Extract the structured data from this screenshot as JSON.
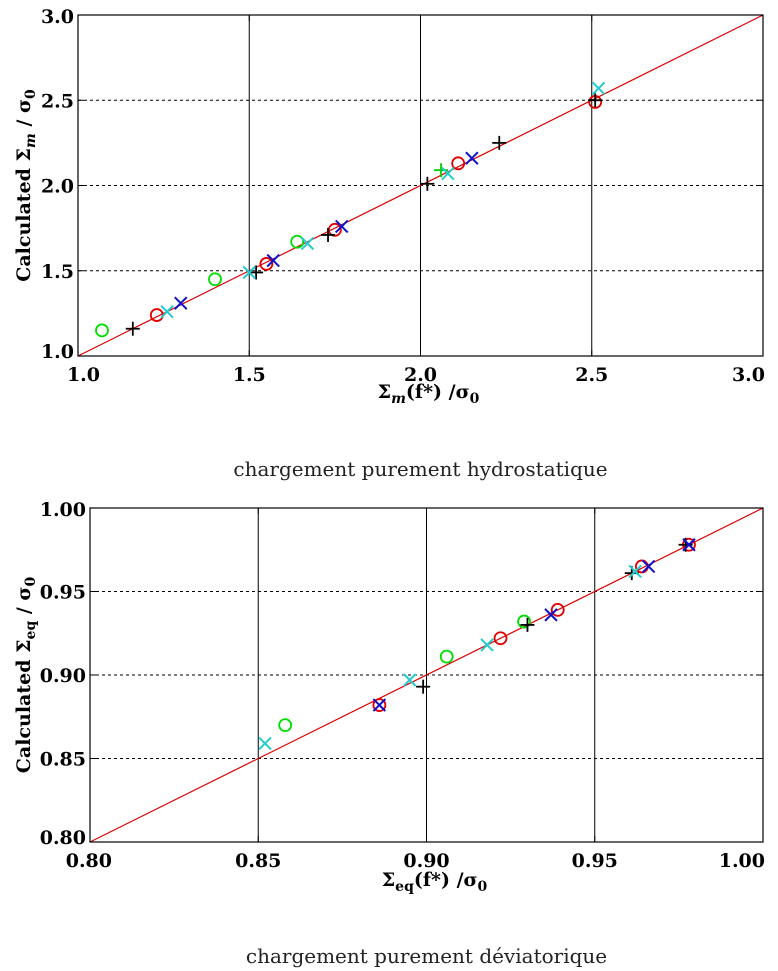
{
  "chart_data": [
    {
      "type": "scatter",
      "caption": "chargement purement hydrostatique",
      "xlabel": {
        "main": "Σ",
        "sub": "m",
        "post": "(f*) /σ",
        "sub2": "0"
      },
      "ylabel": {
        "pre": "Calculated Σ",
        "sub": "m",
        "post": " / σ",
        "sub2": "0"
      },
      "xlim": [
        1.0,
        3.0
      ],
      "ylim": [
        1.0,
        3.0
      ],
      "xticks": [
        "1.0",
        "1.5",
        "2.0",
        "2.5",
        "3.0"
      ],
      "yticks": [
        "1.0",
        "1.5",
        "2.0",
        "2.5",
        "3.0"
      ],
      "xtick_values": [
        1.0,
        1.5,
        2.0,
        2.5,
        3.0
      ],
      "ytick_values": [
        1.0,
        1.5,
        2.0,
        2.5,
        3.0
      ],
      "vgrid_values": [
        1.5,
        2.0,
        2.5
      ],
      "hgrid_values": [
        1.5,
        2.0,
        2.5
      ],
      "diagonal": true,
      "series": [
        {
          "marker": "circle",
          "color": "#00dd00",
          "points": [
            [
              1.07,
              1.15
            ],
            [
              1.4,
              1.45
            ],
            [
              1.64,
              1.67
            ]
          ]
        },
        {
          "marker": "plus",
          "color": "#00cc00",
          "points": [
            [
              2.06,
              2.09
            ]
          ]
        },
        {
          "marker": "circle",
          "color": "#e00000",
          "points": [
            [
              1.23,
              1.24
            ],
            [
              1.55,
              1.54
            ],
            [
              1.75,
              1.74
            ],
            [
              2.11,
              2.13
            ],
            [
              2.51,
              2.49
            ]
          ]
        },
        {
          "marker": "plus",
          "color": "#000000",
          "points": [
            [
              1.16,
              1.16
            ],
            [
              1.52,
              1.49
            ],
            [
              1.73,
              1.71
            ],
            [
              2.02,
              2.01
            ],
            [
              2.23,
              2.25
            ],
            [
              2.51,
              2.5
            ]
          ]
        },
        {
          "marker": "x",
          "color": "#1010cc",
          "points": [
            [
              1.3,
              1.31
            ],
            [
              1.57,
              1.56
            ],
            [
              1.77,
              1.76
            ],
            [
              2.15,
              2.16
            ]
          ]
        },
        {
          "marker": "x",
          "color": "#22cccc",
          "points": [
            [
              1.26,
              1.26
            ],
            [
              1.5,
              1.49
            ],
            [
              1.67,
              1.66
            ],
            [
              2.08,
              2.07
            ],
            [
              2.52,
              2.57
            ]
          ]
        }
      ]
    },
    {
      "type": "scatter",
      "caption": "chargement purement déviatorique",
      "xlabel": {
        "main": "Σ",
        "sub": "eq",
        "post": "(f*) /σ",
        "sub2": "0"
      },
      "ylabel": {
        "pre": "Calculated Σ",
        "sub": "eq",
        "post": " / σ",
        "sub2": "0"
      },
      "xlim": [
        0.8,
        1.0
      ],
      "ylim": [
        0.8,
        1.0
      ],
      "xticks": [
        "0.80",
        "0.85",
        "0.90",
        "0.95",
        "1.00"
      ],
      "yticks": [
        "0.80",
        "0.85",
        "0.90",
        "0.95",
        "1.00"
      ],
      "xtick_values": [
        0.8,
        0.85,
        0.9,
        0.95,
        1.0
      ],
      "ytick_values": [
        0.8,
        0.85,
        0.9,
        0.95,
        1.0
      ],
      "vgrid_values": [
        0.85,
        0.9,
        0.95
      ],
      "hgrid_values": [
        0.85,
        0.9,
        0.95
      ],
      "diagonal": true,
      "series": [
        {
          "marker": "circle",
          "color": "#00dd00",
          "points": [
            [
              0.858,
              0.87
            ],
            [
              0.906,
              0.911
            ],
            [
              0.929,
              0.932
            ]
          ]
        },
        {
          "marker": "circle",
          "color": "#e00000",
          "points": [
            [
              0.886,
              0.882
            ],
            [
              0.922,
              0.922
            ],
            [
              0.939,
              0.939
            ],
            [
              0.964,
              0.965
            ],
            [
              0.978,
              0.978
            ]
          ]
        },
        {
          "marker": "plus",
          "color": "#000000",
          "points": [
            [
              0.899,
              0.893
            ],
            [
              0.93,
              0.93
            ],
            [
              0.961,
              0.961
            ],
            [
              0.977,
              0.978
            ]
          ]
        },
        {
          "marker": "x",
          "color": "#1010cc",
          "points": [
            [
              0.886,
              0.882
            ],
            [
              0.937,
              0.936
            ],
            [
              0.966,
              0.965
            ],
            [
              0.978,
              0.978
            ]
          ]
        },
        {
          "marker": "x",
          "color": "#22cccc",
          "points": [
            [
              0.852,
              0.859
            ],
            [
              0.895,
              0.897
            ],
            [
              0.918,
              0.918
            ],
            [
              0.962,
              0.962
            ]
          ]
        }
      ]
    }
  ]
}
